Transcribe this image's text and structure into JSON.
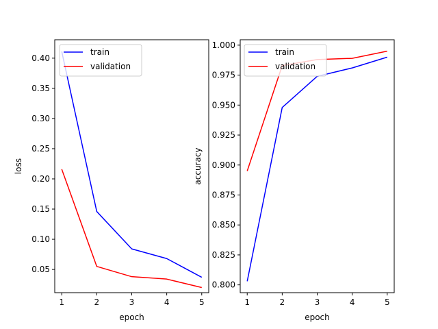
{
  "chart_data": [
    {
      "type": "line",
      "x": [
        1,
        2,
        3,
        4,
        5
      ],
      "xticks": [
        "1",
        "2",
        "3",
        "4",
        "5"
      ],
      "xlim": [
        0.8,
        5.2
      ],
      "ylim": [
        0.0115,
        0.4305
      ],
      "yticks": [
        "0.05",
        "0.10",
        "0.15",
        "0.20",
        "0.25",
        "0.30",
        "0.35",
        "0.40"
      ],
      "ytick_values": [
        0.05,
        0.1,
        0.15,
        0.2,
        0.25,
        0.3,
        0.35,
        0.4
      ],
      "xlabel": "epoch",
      "ylabel": "loss",
      "grid": false,
      "legend": "upper-left",
      "series": [
        {
          "name": "train",
          "color": "#0000ff",
          "values": [
            0.411,
            0.146,
            0.084,
            0.068,
            0.037
          ]
        },
        {
          "name": "validation",
          "color": "#ff0000",
          "values": [
            0.216,
            0.055,
            0.038,
            0.034,
            0.02
          ]
        }
      ]
    },
    {
      "type": "line",
      "x": [
        1,
        2,
        3,
        4,
        5
      ],
      "xticks": [
        "1",
        "2",
        "3",
        "4",
        "5"
      ],
      "xlim": [
        0.8,
        5.2
      ],
      "ylim": [
        0.7935,
        1.0045
      ],
      "yticks": [
        "0.800",
        "0.825",
        "0.850",
        "0.875",
        "0.900",
        "0.925",
        "0.950",
        "0.975",
        "1.000"
      ],
      "ytick_values": [
        0.8,
        0.825,
        0.85,
        0.875,
        0.9,
        0.925,
        0.95,
        0.975,
        1.0
      ],
      "xlabel": "epoch",
      "ylabel": "accuracy",
      "grid": false,
      "legend": "upper-left",
      "series": [
        {
          "name": "train",
          "color": "#0000ff",
          "values": [
            0.803,
            0.948,
            0.974,
            0.981,
            0.99
          ]
        },
        {
          "name": "validation",
          "color": "#ff0000",
          "values": [
            0.895,
            0.983,
            0.988,
            0.989,
            0.995
          ]
        }
      ]
    }
  ]
}
